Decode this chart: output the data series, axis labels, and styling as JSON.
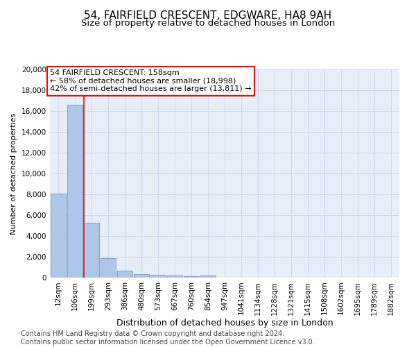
{
  "title": "54, FAIRFIELD CRESCENT, EDGWARE, HA8 9AH",
  "subtitle": "Size of property relative to detached houses in London",
  "xlabel": "Distribution of detached houses by size in London",
  "ylabel": "Number of detached properties",
  "categories": [
    "12sqm",
    "106sqm",
    "199sqm",
    "293sqm",
    "386sqm",
    "480sqm",
    "573sqm",
    "667sqm",
    "760sqm",
    "854sqm",
    "947sqm",
    "1041sqm",
    "1134sqm",
    "1228sqm",
    "1321sqm",
    "1415sqm",
    "1508sqm",
    "1602sqm",
    "1695sqm",
    "1789sqm",
    "1882sqm"
  ],
  "values": [
    8100,
    16600,
    5300,
    1850,
    700,
    350,
    270,
    200,
    150,
    200,
    0,
    0,
    0,
    0,
    0,
    0,
    0,
    0,
    0,
    0,
    0
  ],
  "bar_color": "#aec6e8",
  "bar_edge_color": "#5a8fc0",
  "grid_color": "#c8d4e8",
  "background_color": "#e8eef8",
  "annotation_line1": "54 FAIRFIELD CRESCENT: 158sqm",
  "annotation_line2": "← 58% of detached houses are smaller (18,998)",
  "annotation_line3": "42% of semi-detached houses are larger (13,811) →",
  "property_line_x": 1.55,
  "ylim": [
    0,
    20000
  ],
  "yticks": [
    0,
    2000,
    4000,
    6000,
    8000,
    10000,
    12000,
    14000,
    16000,
    18000,
    20000
  ],
  "footer": "Contains HM Land Registry data © Crown copyright and database right 2024.\nContains public sector information licensed under the Open Government Licence v3.0.",
  "title_fontsize": 11,
  "subtitle_fontsize": 9.5,
  "xlabel_fontsize": 9,
  "ylabel_fontsize": 8,
  "tick_fontsize": 7.5,
  "footer_fontsize": 7,
  "ann_fontsize": 8
}
